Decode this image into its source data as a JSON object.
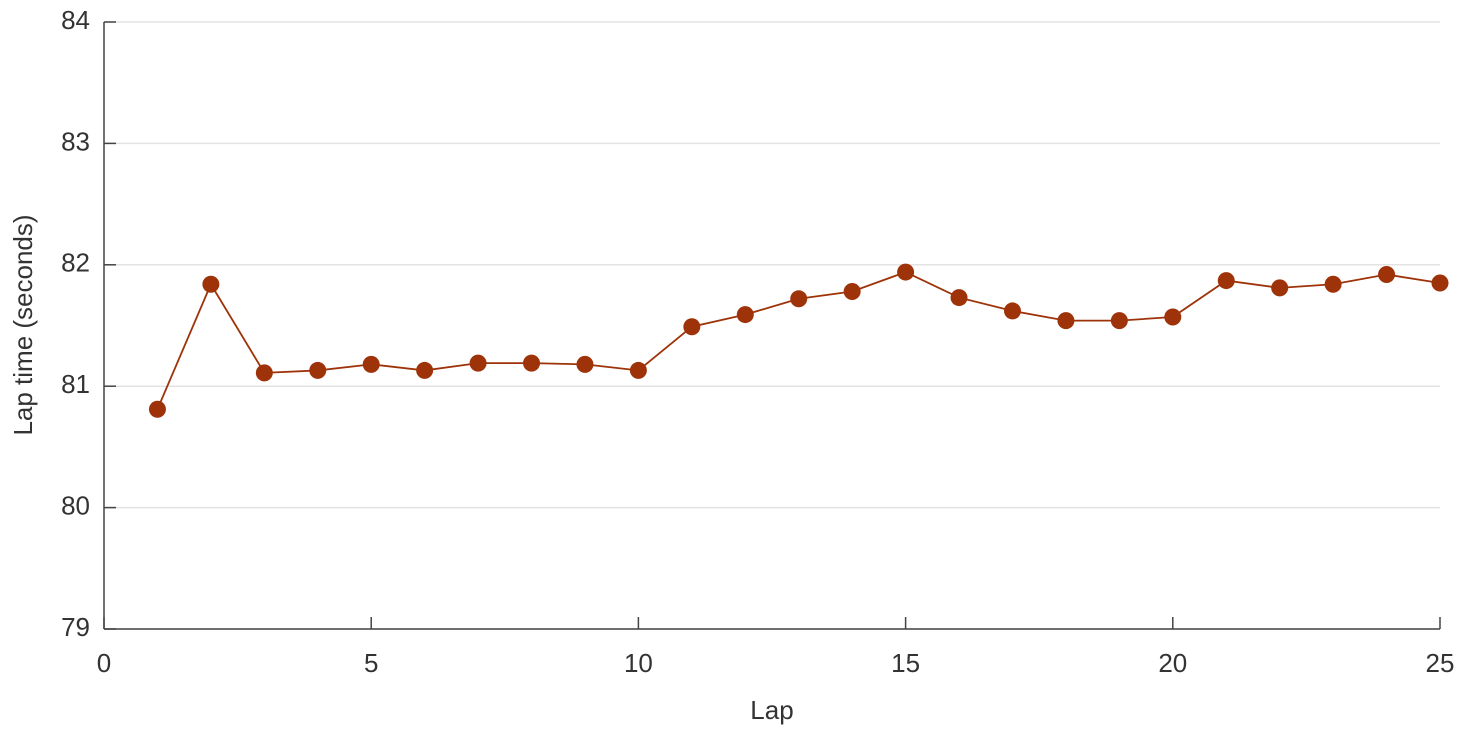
{
  "chart_data": {
    "type": "line",
    "xlabel": "Lap",
    "ylabel": "Lap time (seconds)",
    "x": [
      1,
      2,
      3,
      4,
      5,
      6,
      7,
      8,
      9,
      10,
      11,
      12,
      13,
      14,
      15,
      16,
      17,
      18,
      19,
      20,
      21,
      22,
      23,
      24,
      25
    ],
    "values": [
      80.81,
      81.84,
      81.11,
      81.13,
      81.18,
      81.13,
      81.19,
      81.19,
      81.18,
      81.13,
      81.49,
      81.59,
      81.72,
      81.78,
      81.94,
      81.73,
      81.62,
      81.54,
      81.54,
      81.57,
      81.87,
      81.81,
      81.84,
      81.92,
      81.85
    ],
    "color": "#9e3309",
    "xlim": [
      0,
      25
    ],
    "xticks": [
      0,
      5,
      10,
      15,
      20,
      25
    ],
    "ylim": [
      79,
      84
    ],
    "yticks": [
      79,
      80,
      81,
      82,
      83,
      84
    ],
    "grid": "y"
  }
}
